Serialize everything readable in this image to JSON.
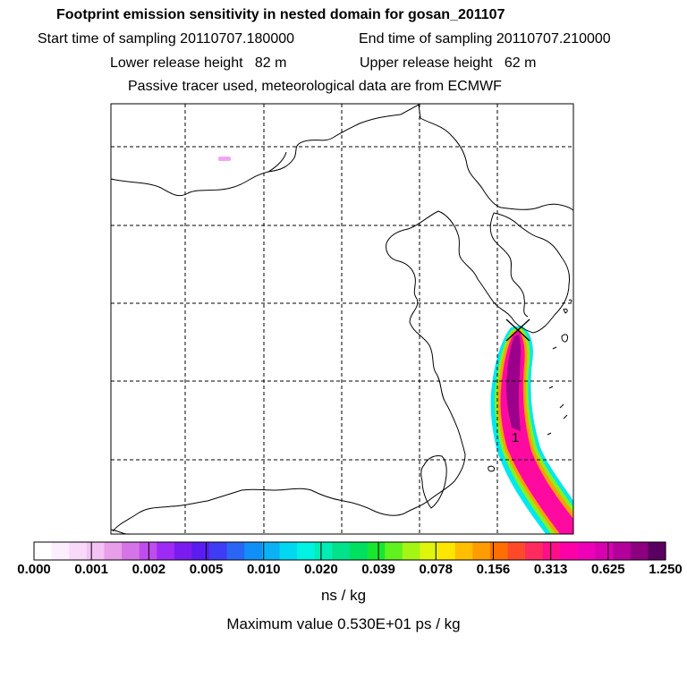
{
  "header": {
    "title": "Footprint emission sensitivity in nested domain for gosan_201107",
    "start_label": "Start time of sampling 20110707.180000",
    "end_label": "End time of sampling 20110707.210000",
    "lower_label": "Lower release height   82 m",
    "upper_label": "Upper release height   62 m",
    "tracer_label": "Passive tracer used, meteorological data are from ECMWF"
  },
  "map": {
    "marker_label": "1",
    "grid": "dashed"
  },
  "colorbar": {
    "ticks": [
      "0.000",
      "0.001",
      "0.002",
      "0.005",
      "0.010",
      "0.020",
      "0.039",
      "0.078",
      "0.156",
      "0.313",
      "0.625",
      "1.250"
    ],
    "colors": [
      "#ffffff",
      "#fdeefd",
      "#f9d9f9",
      "#f4c2f4",
      "#e89ee9",
      "#d574e6",
      "#c04cee",
      "#a02af5",
      "#7a1cf0",
      "#5a1cf0",
      "#3f3cf5",
      "#2a66f5",
      "#0f8ff7",
      "#0ab2f5",
      "#00d8f2",
      "#00f2e3",
      "#00eeb5",
      "#00e38a",
      "#00e060",
      "#18e631",
      "#5ff21e",
      "#a5f514",
      "#e0f50c",
      "#ffe600",
      "#ffbf00",
      "#ff9c00",
      "#ff6e00",
      "#ff4a2a",
      "#ff2a5e",
      "#ff0e8a",
      "#ff00a8",
      "#ee00b8",
      "#d800b0",
      "#b4009a",
      "#8c0080",
      "#5a0060"
    ],
    "units": "ns / kg",
    "max_value": "Maximum value  0.530E+01 ps / kg"
  }
}
